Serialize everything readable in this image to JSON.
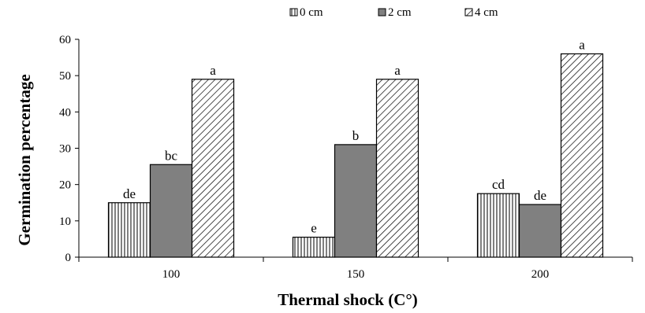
{
  "chart_data": {
    "type": "bar",
    "xlabel": "Thermal shock (C°)",
    "ylabel": "Germination percentage",
    "ylim": [
      0,
      60
    ],
    "yticks": [
      0,
      10,
      20,
      30,
      40,
      50,
      60
    ],
    "grid": false,
    "legend_position": "top",
    "categories": [
      "100",
      "150",
      "200"
    ],
    "series": [
      {
        "name": "0 cm",
        "pattern": "vertical-lines",
        "color": "#ffffff",
        "values": [
          15,
          5.5,
          17.5
        ],
        "labels": [
          "de",
          "e",
          "cd"
        ]
      },
      {
        "name": "2 cm",
        "pattern": "solid",
        "color": "#808080",
        "values": [
          25.5,
          31,
          14.5
        ],
        "labels": [
          "bc",
          "b",
          "de"
        ]
      },
      {
        "name": "4 cm",
        "pattern": "diagonal-lines",
        "color": "#ffffff",
        "values": [
          49,
          49,
          56
        ],
        "labels": [
          "a",
          "a",
          "a"
        ]
      }
    ]
  }
}
